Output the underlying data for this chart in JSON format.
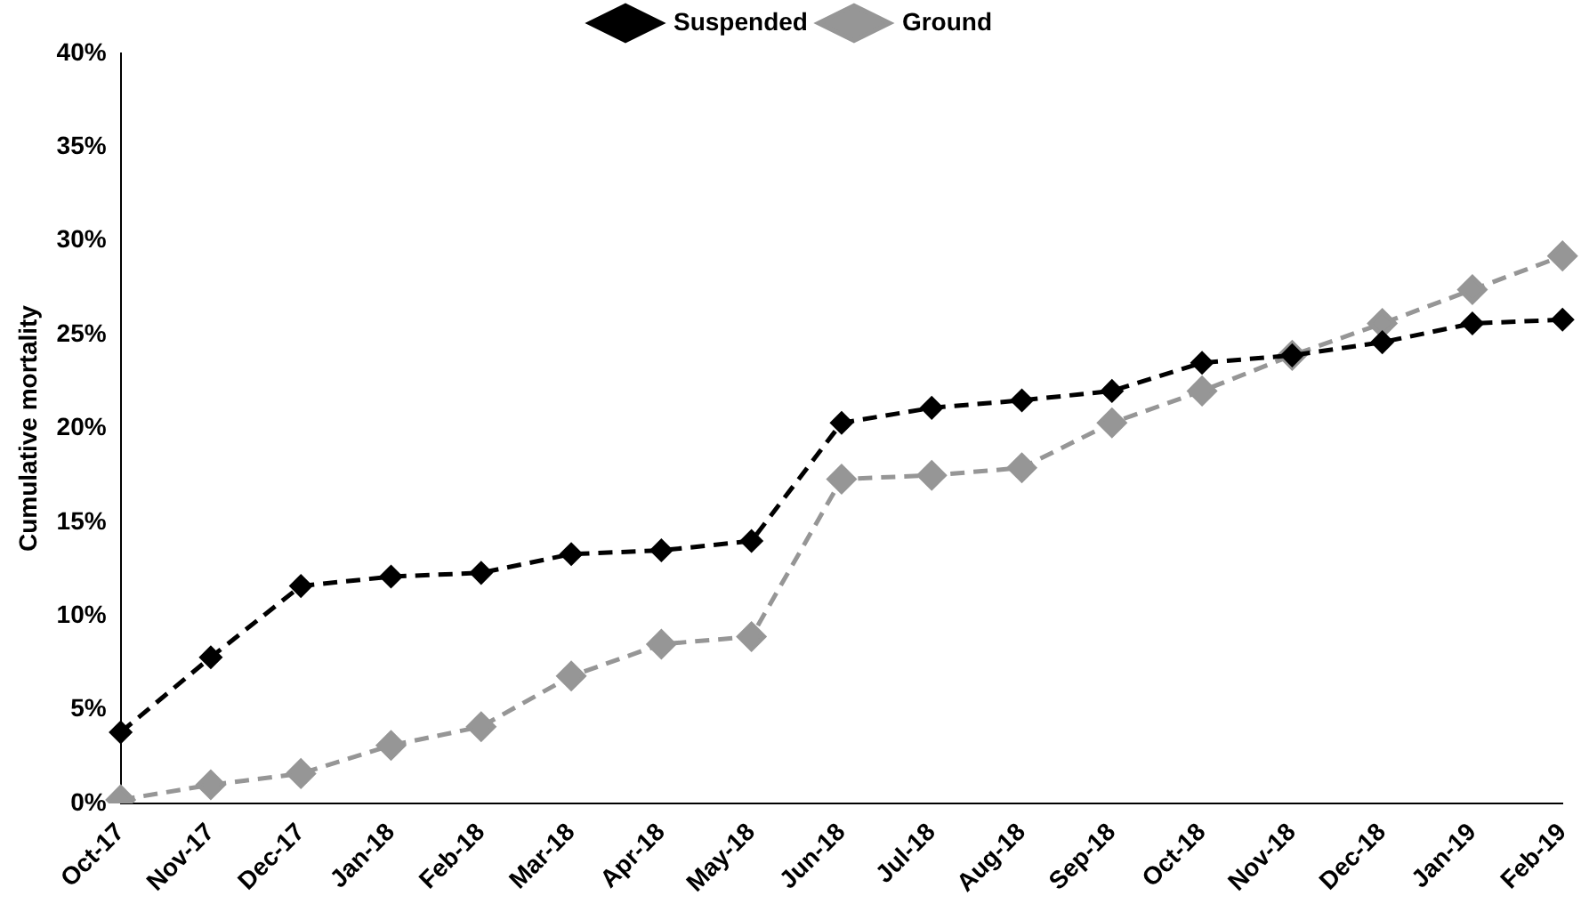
{
  "chart_data": {
    "type": "line",
    "ylabel": "Cumulative mortality",
    "categories": [
      "Oct-17",
      "Nov-17",
      "Dec-17",
      "Jan-18",
      "Feb-18",
      "Mar-18",
      "Apr-18",
      "May-18",
      "Jun-18",
      "Jul-18",
      "Aug-18",
      "Sep-18",
      "Oct-18",
      "Nov-18",
      "Dec-18",
      "Jan-19",
      "Feb-19"
    ],
    "series": [
      {
        "name": "Suspended",
        "color": "#000000",
        "values": [
          3.8,
          7.8,
          11.6,
          12.1,
          12.3,
          13.3,
          13.5,
          14.0,
          20.3,
          21.1,
          21.5,
          22.0,
          23.5,
          23.9,
          24.6,
          25.6,
          25.8
        ]
      },
      {
        "name": "Ground",
        "color": "#969696",
        "values": [
          0.2,
          1.0,
          1.6,
          3.1,
          4.1,
          6.8,
          8.5,
          8.9,
          17.3,
          17.5,
          17.9,
          20.3,
          22.0,
          23.9,
          25.6,
          27.4,
          29.2
        ]
      }
    ],
    "ylim": [
      0,
      40
    ],
    "yticks": [
      {
        "value": 0,
        "label": "0%"
      },
      {
        "value": 5,
        "label": "5%"
      },
      {
        "value": 10,
        "label": "10%"
      },
      {
        "value": 15,
        "label": "15%"
      },
      {
        "value": 20,
        "label": "20%"
      },
      {
        "value": 25,
        "label": "25%"
      },
      {
        "value": 30,
        "label": "30%"
      },
      {
        "value": 35,
        "label": "35%"
      },
      {
        "value": 40,
        "label": "40%"
      }
    ],
    "grid": false,
    "legend": "top",
    "marker": "diamond",
    "line_style": "dashed"
  }
}
